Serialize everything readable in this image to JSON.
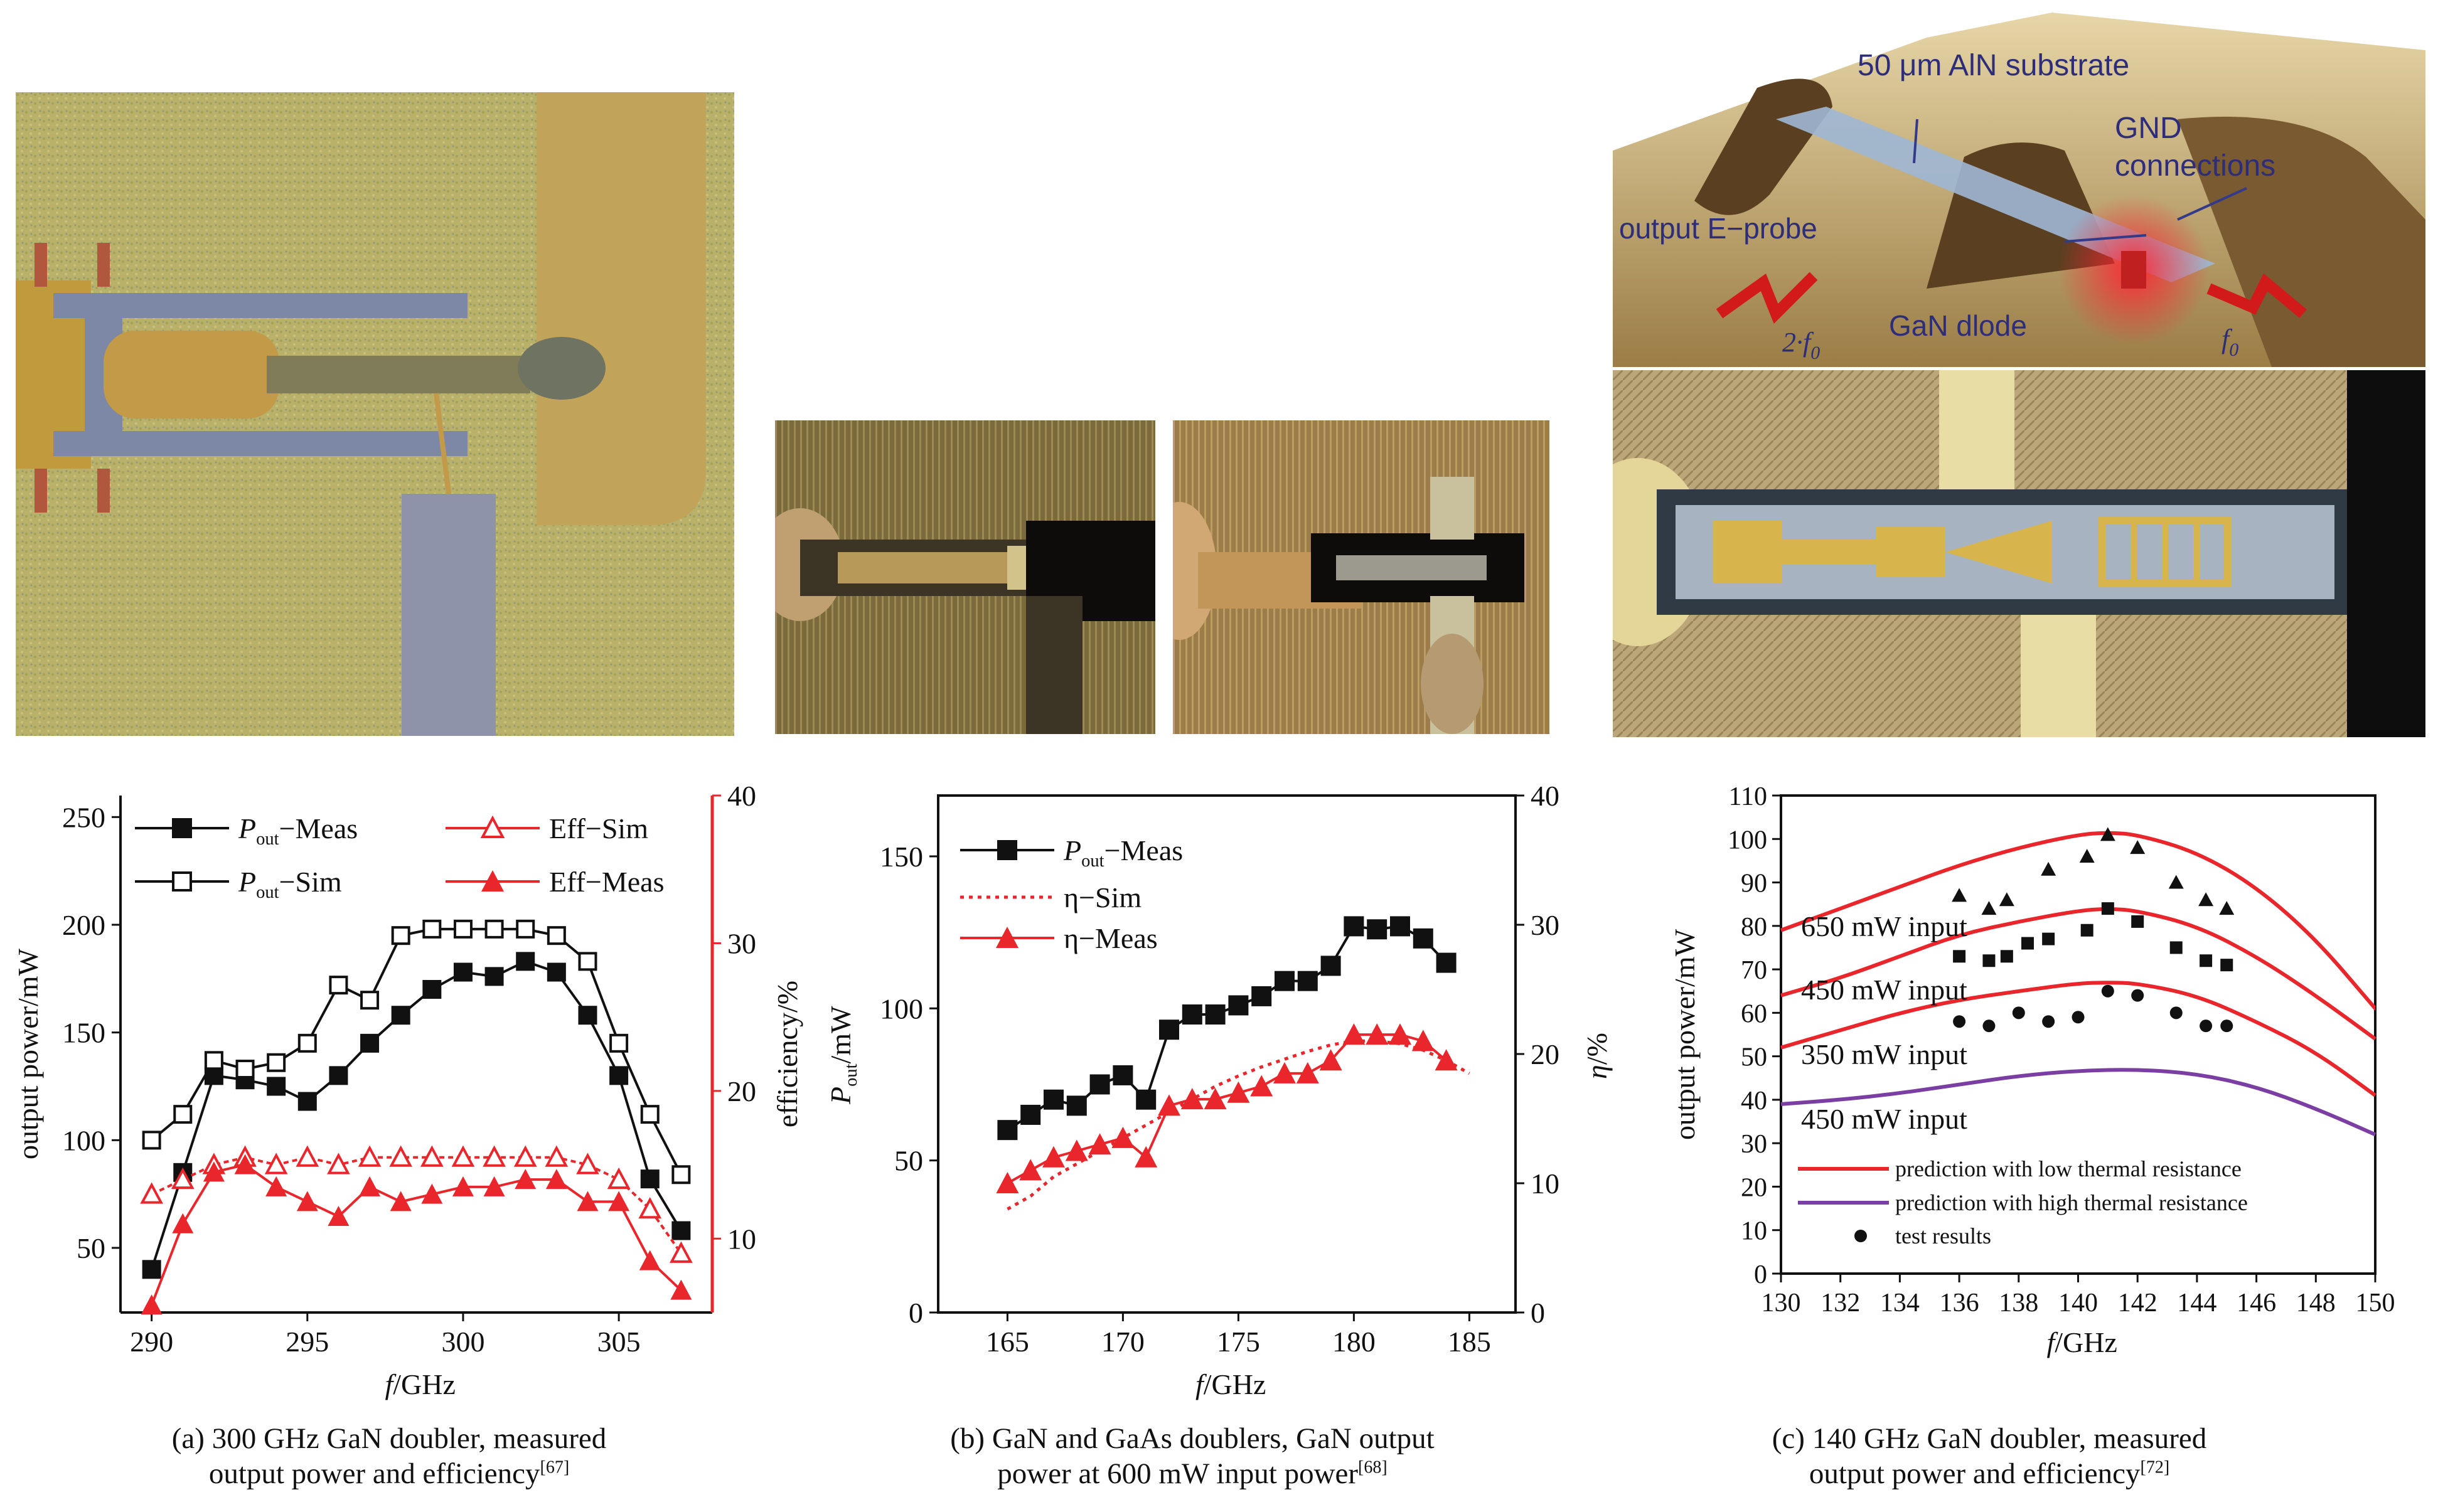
{
  "panels": [
    {
      "caption_line1": "(a) 300 GHz GaN doubler, measured",
      "caption_line2": "output power and efficiency",
      "caption_ref": "[67]"
    },
    {
      "caption_line1": "(b) GaN and GaAs doublers, GaN output",
      "caption_line2": "power at 600 mW input power",
      "caption_ref": "[68]"
    },
    {
      "caption_line1": "(c) 140 GHz GaN doubler, measured",
      "caption_line2": "output power and efficiency",
      "caption_ref": "[72]"
    }
  ],
  "diagram_labels": {
    "substrate": "50 μm AlN substrate",
    "gnd1": "GND",
    "gnd2": "connections",
    "probe": "output E−probe",
    "diode": "GaN dlode",
    "f2": "2·f",
    "f2_sub": "0",
    "f0": "f",
    "f0_sub": "0"
  },
  "colors": {
    "meas_black": "#111111",
    "eff_red": "#e8262b",
    "purple": "#7b3fa3",
    "red_axis": "#e8262b"
  },
  "chart_data": [
    {
      "type": "line",
      "xlabel": "f/GHz",
      "ylabel": "output power/mW",
      "ylabel_right": "efficiency/%",
      "xlim": [
        289,
        308
      ],
      "ylim": [
        20,
        260
      ],
      "ylim_right": [
        5,
        40
      ],
      "xticks": [
        290,
        295,
        300,
        305
      ],
      "yticks": [
        50,
        100,
        150,
        200,
        250
      ],
      "yticks_right": [
        10,
        20,
        30,
        40
      ],
      "legend": [
        {
          "label": "P",
          "sub": "out",
          "rest": "−Meas"
        },
        {
          "label": "P",
          "sub": "out",
          "rest": "−Sim"
        },
        {
          "label": "Eff−Sim",
          "sub": "",
          "rest": ""
        },
        {
          "label": "Eff−Meas",
          "sub": "",
          "rest": ""
        }
      ],
      "series": [
        {
          "name": "Pout−Meas",
          "axis": "left",
          "marker": "square-filled",
          "x": [
            290,
            291,
            292,
            293,
            294,
            295,
            296,
            297,
            298,
            299,
            300,
            301,
            302,
            303,
            304,
            305,
            306,
            307
          ],
          "values": [
            40,
            85,
            130,
            128,
            125,
            118,
            130,
            145,
            158,
            170,
            178,
            176,
            183,
            178,
            158,
            130,
            82,
            58
          ]
        },
        {
          "name": "Pout−Sim",
          "axis": "left",
          "marker": "square-open",
          "x": [
            290,
            291,
            292,
            293,
            294,
            295,
            296,
            297,
            298,
            299,
            300,
            301,
            302,
            303,
            304,
            305,
            306,
            307
          ],
          "values": [
            100,
            112,
            137,
            133,
            136,
            145,
            172,
            165,
            195,
            198,
            198,
            198,
            198,
            195,
            183,
            145,
            112,
            84
          ]
        },
        {
          "name": "Eff−Sim",
          "axis": "right",
          "marker": "triangle-open",
          "x": [
            290,
            291,
            292,
            293,
            294,
            295,
            296,
            297,
            298,
            299,
            300,
            301,
            302,
            303,
            304,
            305,
            306,
            307
          ],
          "values": [
            13,
            14,
            15,
            15.5,
            15,
            15.5,
            15,
            15.5,
            15.5,
            15.5,
            15.5,
            15.5,
            15.5,
            15.5,
            15,
            14,
            12,
            9
          ]
        },
        {
          "name": "Eff−Meas",
          "axis": "right",
          "marker": "triangle-filled",
          "x": [
            290,
            291,
            292,
            293,
            294,
            295,
            296,
            297,
            298,
            299,
            300,
            301,
            302,
            303,
            304,
            305,
            306,
            307
          ],
          "values": [
            5.5,
            11,
            14.5,
            15,
            13.5,
            12.5,
            11.5,
            13.5,
            12.5,
            13,
            13.5,
            13.5,
            14,
            14,
            12.5,
            12.5,
            8.5,
            6.5
          ]
        }
      ]
    },
    {
      "type": "line",
      "xlabel": "f/GHz",
      "ylabel": "P",
      "ylabel_sub": "out",
      "ylabel_rest": "/mW",
      "ylabel_right": "η/%",
      "xlim": [
        162,
        187
      ],
      "ylim": [
        0,
        170
      ],
      "ylim_right": [
        0,
        40
      ],
      "xticks": [
        165,
        170,
        175,
        180,
        185
      ],
      "yticks": [
        0,
        50,
        100,
        150
      ],
      "yticks_right": [
        0,
        10,
        20,
        30,
        40
      ],
      "legend": [
        {
          "label": "P",
          "sub": "out",
          "rest": "−Meas"
        },
        {
          "label": "η−Sim",
          "sub": "",
          "rest": ""
        },
        {
          "label": "η−Meas",
          "sub": "",
          "rest": ""
        }
      ],
      "series": [
        {
          "name": "Pout−Meas",
          "axis": "left",
          "marker": "square-filled",
          "x": [
            165,
            166,
            167,
            168,
            169,
            170,
            171,
            172,
            173,
            174,
            175,
            176,
            177,
            178,
            179,
            180,
            181,
            182,
            183,
            184
          ],
          "values": [
            60,
            65,
            70,
            68,
            75,
            78,
            70,
            93,
            98,
            98,
            101,
            104,
            109,
            109,
            114,
            127,
            126,
            127,
            123,
            115
          ]
        },
        {
          "name": "η−Sim",
          "axis": "right",
          "marker": "dotted",
          "x": [
            165,
            166,
            167,
            168,
            169,
            170,
            171,
            172,
            173,
            174,
            175,
            176,
            177,
            178,
            179,
            180,
            181,
            182,
            183,
            184,
            185
          ],
          "values": [
            8,
            9,
            10.5,
            11.5,
            12.5,
            13.5,
            14.5,
            15.5,
            16.5,
            17.5,
            18.3,
            19,
            19.6,
            20.2,
            20.7,
            21,
            21,
            20.8,
            20.3,
            19.5,
            18.5
          ]
        },
        {
          "name": "η−Meas",
          "axis": "right",
          "marker": "triangle-filled",
          "x": [
            165,
            166,
            167,
            168,
            169,
            170,
            171,
            172,
            173,
            174,
            175,
            176,
            177,
            178,
            179,
            180,
            181,
            182,
            183,
            184
          ],
          "values": [
            10,
            11,
            12,
            12.5,
            13,
            13.5,
            12,
            16,
            16.5,
            16.5,
            17,
            17.5,
            18.5,
            18.5,
            19.5,
            21.5,
            21.5,
            21.5,
            21,
            19.5
          ]
        }
      ]
    },
    {
      "type": "line",
      "xlabel": "f/GHz",
      "ylabel": "output power/mW",
      "xlim": [
        130,
        150
      ],
      "ylim": [
        0,
        110
      ],
      "xticks": [
        130,
        132,
        134,
        136,
        138,
        140,
        142,
        144,
        146,
        148,
        150
      ],
      "yticks": [
        0,
        10,
        20,
        30,
        40,
        50,
        60,
        70,
        80,
        90,
        100,
        110
      ],
      "annotations": [
        "650 mW input",
        "450 mW input",
        "350 mW input",
        "450 mW input"
      ],
      "legend": [
        {
          "label": "prediction with low thermal resistance"
        },
        {
          "label": "prediction with high thermal resistance"
        },
        {
          "label": "test results"
        }
      ],
      "series": [
        {
          "name": "low-R 650",
          "color": "red",
          "x": [
            130,
            132,
            134,
            136,
            138,
            140,
            141,
            142,
            144,
            146,
            148,
            150
          ],
          "values": [
            79,
            84,
            89,
            94,
            98,
            101,
            101.5,
            101,
            97,
            89,
            77,
            61
          ]
        },
        {
          "name": "low-R 450",
          "color": "red",
          "x": [
            130,
            132,
            134,
            136,
            138,
            140,
            141,
            142,
            144,
            146,
            148,
            150
          ],
          "values": [
            64,
            68,
            73,
            78,
            81,
            83.5,
            84,
            83.5,
            80,
            73,
            64,
            54
          ]
        },
        {
          "name": "low-R 350",
          "color": "red",
          "x": [
            130,
            132,
            134,
            136,
            138,
            140,
            141,
            142,
            144,
            146,
            148,
            150
          ],
          "values": [
            52,
            56,
            60,
            63,
            65,
            66.8,
            67,
            66.8,
            64,
            58,
            51,
            41
          ]
        },
        {
          "name": "high-R 450",
          "color": "purple",
          "x": [
            130,
            132,
            134,
            136,
            138,
            140,
            142,
            144,
            146,
            148,
            150
          ],
          "values": [
            39,
            40,
            41.5,
            43.5,
            45.5,
            46.7,
            47,
            46,
            43,
            38,
            32
          ]
        },
        {
          "name": "test 650",
          "marker": "triangle-filled",
          "x": [
            136,
            137,
            137.6,
            139,
            140.3,
            141,
            142,
            143.3,
            144.3,
            145
          ],
          "values": [
            87,
            84,
            86,
            93,
            96,
            101,
            98,
            90,
            86,
            84
          ]
        },
        {
          "name": "test 450",
          "marker": "square-filled",
          "x": [
            136,
            137,
            137.6,
            138.3,
            139,
            140.3,
            141,
            142,
            143.3,
            144.3,
            145
          ],
          "values": [
            73,
            72,
            73,
            76,
            77,
            79,
            84,
            81,
            75,
            72,
            71
          ]
        },
        {
          "name": "test 350",
          "marker": "circle-filled",
          "x": [
            136,
            137,
            138,
            139,
            140,
            141,
            142,
            143.3,
            144.3,
            145
          ],
          "values": [
            58,
            57,
            60,
            58,
            59,
            65,
            64,
            60,
            57,
            57
          ]
        }
      ]
    }
  ]
}
